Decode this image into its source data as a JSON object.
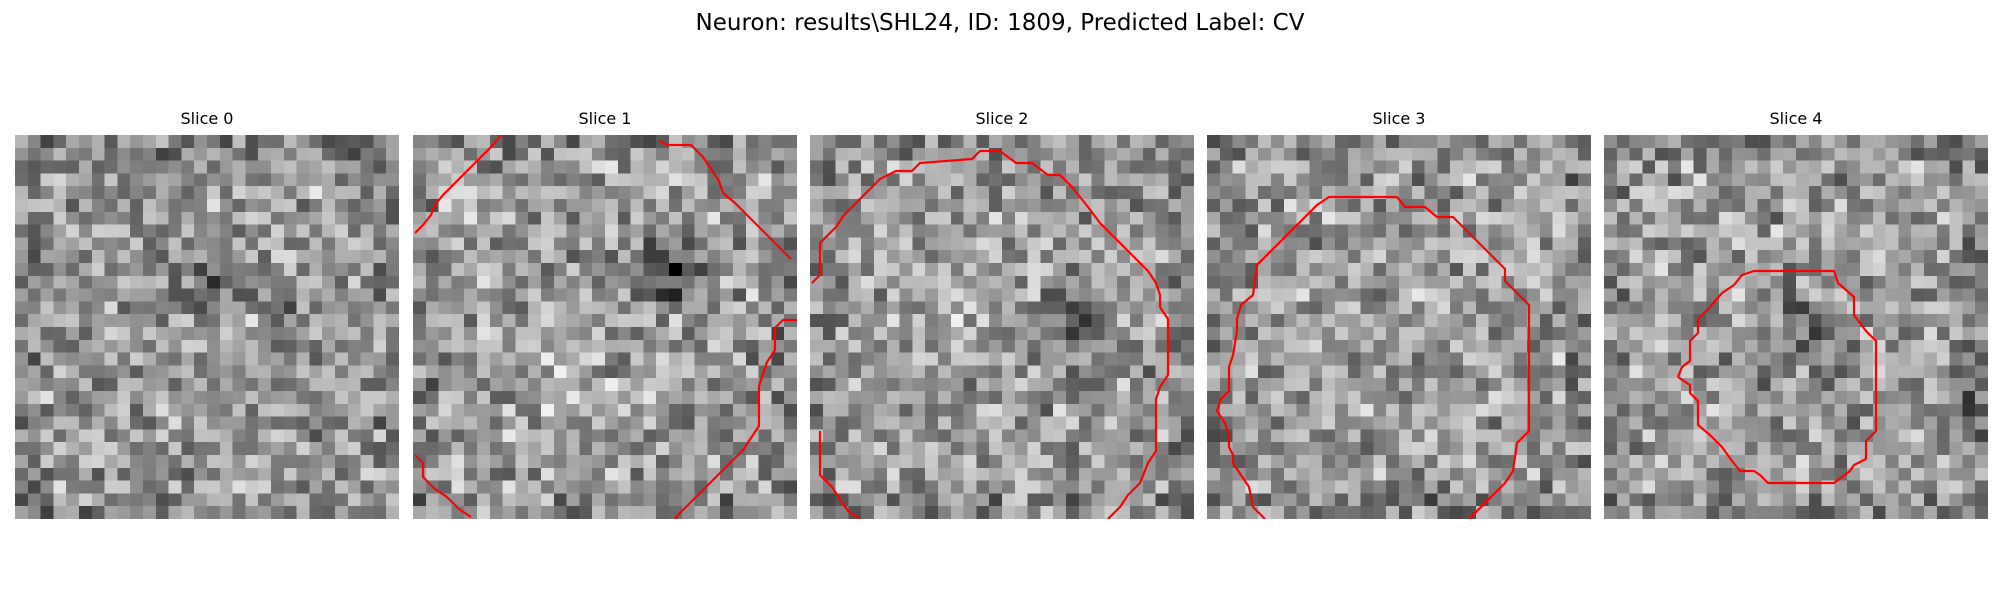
{
  "figure": {
    "title": "Neuron: results\\SHL24, ID: 1809, Predicted Label: CV"
  },
  "style": {
    "contour_color": "#ff0000",
    "colormap": "gray"
  },
  "slices": [
    {
      "title": "Slice 0",
      "has_contour": false
    },
    {
      "title": "Slice 1",
      "has_contour": true
    },
    {
      "title": "Slice 2",
      "has_contour": true
    },
    {
      "title": "Slice 3",
      "has_contour": true
    },
    {
      "title": "Slice 4",
      "has_contour": true
    }
  ]
}
